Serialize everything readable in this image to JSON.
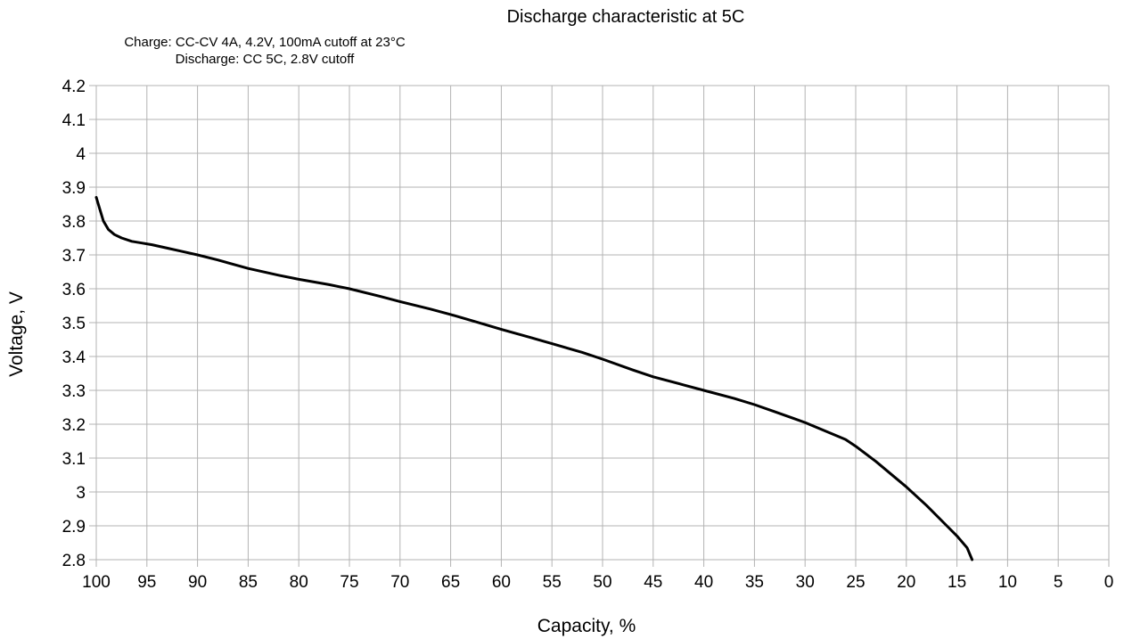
{
  "chart_data": {
    "type": "line",
    "title": "Discharge characteristic at 5C",
    "notes": [
      "Charge: CC-CV 4A, 4.2V, 100mA cutoff at 23°C",
      "Discharge: CC 5C, 2.8V cutoff"
    ],
    "xlabel": "Capacity, %",
    "ylabel": "Voltage, V",
    "xlim": [
      100,
      0
    ],
    "ylim": [
      2.8,
      4.2
    ],
    "x_reversed": true,
    "grid": true,
    "legend": "none",
    "xticks": [
      "100",
      "95",
      "90",
      "85",
      "80",
      "75",
      "70",
      "65",
      "60",
      "55",
      "50",
      "45",
      "40",
      "35",
      "30",
      "25",
      "20",
      "15",
      "10",
      "5",
      "0"
    ],
    "yticks": [
      "4.2",
      "4.1",
      "4",
      "3.9",
      "3.8",
      "3.7",
      "3.6",
      "3.5",
      "3.4",
      "3.3",
      "3.2",
      "3.1",
      "3",
      "2.9",
      "2.8"
    ],
    "series": [
      {
        "color": "#000000",
        "x": [
          100,
          99.7,
          99.3,
          98.8,
          98.2,
          97.5,
          96.5,
          95.5,
          94.5,
          93,
          91.5,
          90,
          88,
          85,
          82,
          80,
          77,
          75,
          72,
          70,
          67,
          65,
          62,
          60,
          57,
          55,
          52,
          50,
          47,
          45,
          42,
          40,
          37,
          35,
          33,
          30,
          28,
          26,
          25,
          23,
          21,
          20,
          18,
          16,
          15,
          14,
          13.5
        ],
        "y": [
          3.87,
          3.84,
          3.8,
          3.775,
          3.76,
          3.75,
          3.74,
          3.735,
          3.73,
          3.72,
          3.71,
          3.7,
          3.685,
          3.66,
          3.64,
          3.628,
          3.612,
          3.6,
          3.578,
          3.562,
          3.54,
          3.524,
          3.498,
          3.48,
          3.455,
          3.438,
          3.412,
          3.392,
          3.36,
          3.34,
          3.316,
          3.3,
          3.276,
          3.258,
          3.237,
          3.205,
          3.18,
          3.155,
          3.135,
          3.09,
          3.04,
          3.015,
          2.96,
          2.9,
          2.87,
          2.835,
          2.8
        ]
      }
    ]
  }
}
